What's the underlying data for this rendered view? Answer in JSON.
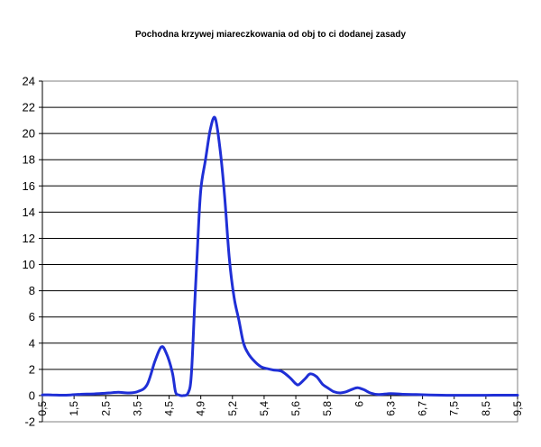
{
  "chart_data": {
    "type": "line",
    "title": "Pochodna krzywej miareczkowania od obj  to   ci dodanej zasady",
    "xlabel": "",
    "ylabel": "",
    "ylim": [
      -2,
      24
    ],
    "yticks": [
      -2,
      0,
      2,
      4,
      6,
      8,
      10,
      12,
      14,
      16,
      18,
      20,
      22,
      24
    ],
    "grid": true,
    "legend": "none",
    "x_tick_labels": [
      "0,5",
      "1,5",
      "2,5",
      "3,5",
      "4,5",
      "4,9",
      "5,2",
      "5,4",
      "5,6",
      "5,8",
      "6",
      "6,3",
      "6,7",
      "7,5",
      "8,5",
      "9,5"
    ],
    "series": [
      {
        "color": "#1f2fd6",
        "points": [
          [
            0.0,
            0.05
          ],
          [
            0.3,
            0.05
          ],
          [
            0.6,
            0.03
          ],
          [
            0.9,
            0.05
          ],
          [
            1.2,
            0.1
          ],
          [
            1.5,
            0.12
          ],
          [
            1.8,
            0.15
          ],
          [
            2.1,
            0.2
          ],
          [
            2.4,
            0.25
          ],
          [
            2.7,
            0.2
          ],
          [
            3.0,
            0.3
          ],
          [
            3.3,
            0.8
          ],
          [
            3.55,
            2.6
          ],
          [
            3.75,
            3.7
          ],
          [
            3.9,
            3.3
          ],
          [
            4.1,
            1.8
          ],
          [
            4.2,
            0.3
          ],
          [
            4.3,
            0.05
          ],
          [
            4.45,
            0.0
          ],
          [
            4.6,
            0.2
          ],
          [
            4.7,
            1.5
          ],
          [
            4.8,
            6.5
          ],
          [
            4.9,
            11.5
          ],
          [
            5.0,
            15.7
          ],
          [
            5.15,
            18.0
          ],
          [
            5.3,
            20.3
          ],
          [
            5.45,
            21.2
          ],
          [
            5.6,
            19.0
          ],
          [
            5.75,
            15.3
          ],
          [
            5.9,
            10.5
          ],
          [
            6.05,
            7.5
          ],
          [
            6.2,
            5.8
          ],
          [
            6.35,
            4.0
          ],
          [
            6.5,
            3.2
          ],
          [
            6.7,
            2.6
          ],
          [
            6.9,
            2.2
          ],
          [
            7.1,
            2.05
          ],
          [
            7.3,
            1.95
          ],
          [
            7.55,
            1.85
          ],
          [
            7.8,
            1.4
          ],
          [
            8.0,
            0.9
          ],
          [
            8.1,
            0.85
          ],
          [
            8.3,
            1.3
          ],
          [
            8.45,
            1.65
          ],
          [
            8.65,
            1.45
          ],
          [
            8.85,
            0.85
          ],
          [
            9.0,
            0.6
          ],
          [
            9.2,
            0.3
          ],
          [
            9.4,
            0.2
          ],
          [
            9.6,
            0.3
          ],
          [
            9.8,
            0.5
          ],
          [
            9.95,
            0.6
          ],
          [
            10.15,
            0.45
          ],
          [
            10.35,
            0.2
          ],
          [
            10.6,
            0.08
          ],
          [
            11.0,
            0.15
          ],
          [
            11.4,
            0.1
          ],
          [
            11.8,
            0.08
          ],
          [
            12.2,
            0.05
          ],
          [
            12.6,
            0.03
          ],
          [
            13.0,
            0.02
          ],
          [
            13.5,
            0.02
          ],
          [
            14.0,
            0.02
          ],
          [
            14.5,
            0.03
          ],
          [
            15.0,
            0.03
          ]
        ]
      }
    ]
  }
}
